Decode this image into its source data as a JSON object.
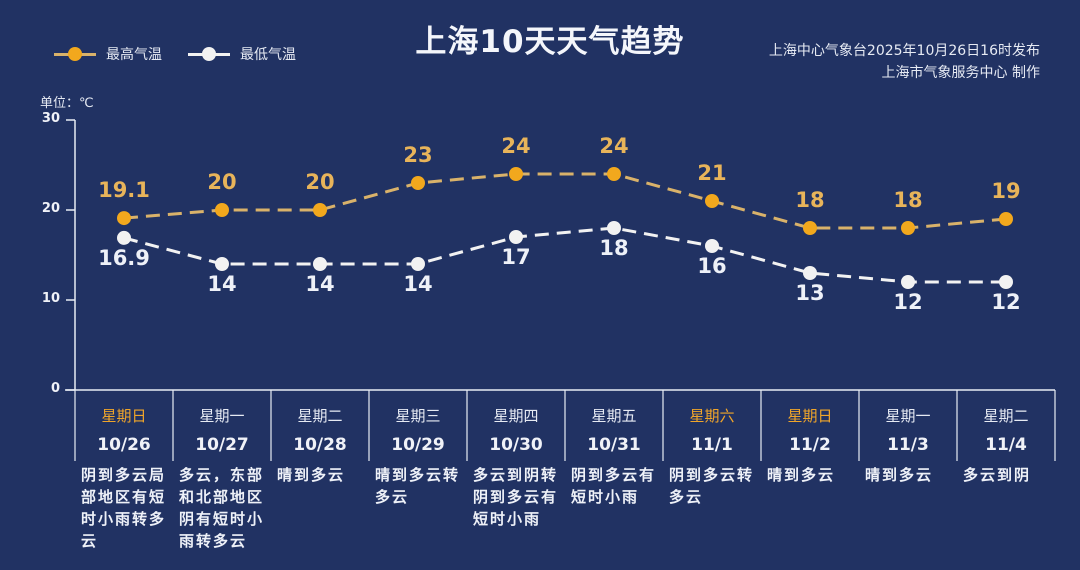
{
  "header": {
    "title": "上海10天天气趋势",
    "issuer_line1": "上海中心气象台2025年10月26日16时发布",
    "issuer_line2": "上海市气象服务中心  制作"
  },
  "legend": {
    "high_label": "最高气温",
    "low_label": "最低气温"
  },
  "unit_label": "单位：℃",
  "colors": {
    "background": "#213263",
    "high": "#f2a81d",
    "high_line": "#d9b26a",
    "low": "#f2f2f2",
    "weekend": "#f0a52a"
  },
  "chart_data": {
    "type": "line",
    "title": "上海10天天气趋势",
    "xlabel": "",
    "ylabel": "单位：℃",
    "ylim": [
      0,
      30
    ],
    "yticks": [
      0,
      10,
      20,
      30
    ],
    "grid": false,
    "legend_position": "top-left",
    "categories": [
      "10/26",
      "10/27",
      "10/28",
      "10/29",
      "10/30",
      "10/31",
      "11/1",
      "11/2",
      "11/3",
      "11/4"
    ],
    "weekdays": [
      "星期日",
      "星期一",
      "星期二",
      "星期三",
      "星期四",
      "星期五",
      "星期六",
      "星期日",
      "星期一",
      "星期二"
    ],
    "series": [
      {
        "name": "最高气温",
        "values": [
          19.1,
          20,
          20,
          23,
          24,
          24,
          21,
          18,
          18,
          19
        ]
      },
      {
        "name": "最低气温",
        "values": [
          16.9,
          14,
          14,
          14,
          17,
          18,
          16,
          13,
          12,
          12
        ]
      }
    ],
    "data_labels": {
      "high": [
        "19.1",
        "20",
        "20",
        "23",
        "24",
        "24",
        "21",
        "18",
        "18",
        "19"
      ],
      "low": [
        "16.9",
        "14",
        "14",
        "14",
        "17",
        "18",
        "16",
        "13",
        "12",
        "12"
      ]
    }
  },
  "days": [
    {
      "weekday": "星期日",
      "date": "10/26",
      "weekend": true,
      "desc": "阴到多云局部地区有短时小雨转多云"
    },
    {
      "weekday": "星期一",
      "date": "10/27",
      "weekend": false,
      "desc": "多云，东部和北部地区阴有短时小雨转多云"
    },
    {
      "weekday": "星期二",
      "date": "10/28",
      "weekend": false,
      "desc": "晴到多云"
    },
    {
      "weekday": "星期三",
      "date": "10/29",
      "weekend": false,
      "desc": "晴到多云转多云"
    },
    {
      "weekday": "星期四",
      "date": "10/30",
      "weekend": false,
      "desc": "多云到阴转阴到多云有短时小雨"
    },
    {
      "weekday": "星期五",
      "date": "10/31",
      "weekend": false,
      "desc": "阴到多云有短时小雨"
    },
    {
      "weekday": "星期六",
      "date": "11/1",
      "weekend": true,
      "desc": "阴到多云转多云"
    },
    {
      "weekday": "星期日",
      "date": "11/2",
      "weekend": true,
      "desc": "晴到多云"
    },
    {
      "weekday": "星期一",
      "date": "11/3",
      "weekend": false,
      "desc": "晴到多云"
    },
    {
      "weekday": "星期二",
      "date": "11/4",
      "weekend": false,
      "desc": "多云到阴"
    }
  ]
}
